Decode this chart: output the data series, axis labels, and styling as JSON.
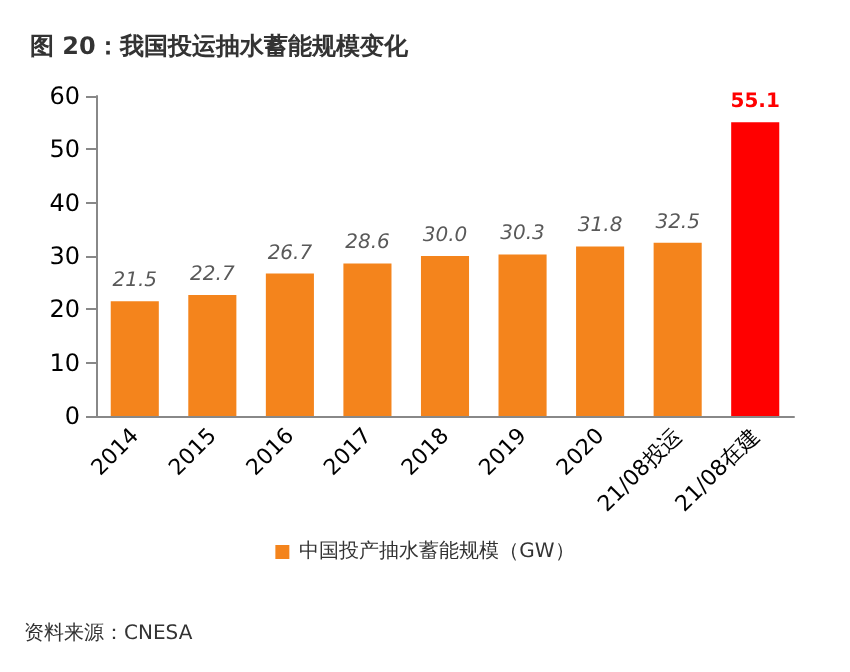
{
  "chart_data": {
    "type": "bar",
    "title": "图 20：我国投运抽水蓄能规模变化",
    "categories": [
      "2014",
      "2015",
      "2016",
      "2017",
      "2018",
      "2019",
      "2020",
      "21/08投运",
      "21/08在建"
    ],
    "series": [
      {
        "name": "中国投产抽水蓄能规模（GW）",
        "color": "#f4841c",
        "colors": [
          "#f4841c",
          "#f4841c",
          "#f4841c",
          "#f4841c",
          "#f4841c",
          "#f4841c",
          "#f4841c",
          "#f4841c",
          "#ff0000"
        ],
        "values": [
          21.5,
          22.7,
          26.7,
          28.6,
          30.0,
          30.3,
          31.8,
          32.5,
          55.1
        ],
        "value_labels": [
          "21.5",
          "22.7",
          "26.7",
          "28.6",
          "30.0",
          "30.3",
          "31.8",
          "32.5",
          "55.1"
        ]
      }
    ],
    "ylim": [
      0,
      60
    ],
    "yticks": [
      0,
      10,
      20,
      30,
      40,
      50,
      60
    ],
    "grid": false,
    "legend": "bottom",
    "annotations": [
      "资料来源：CNESA"
    ]
  }
}
